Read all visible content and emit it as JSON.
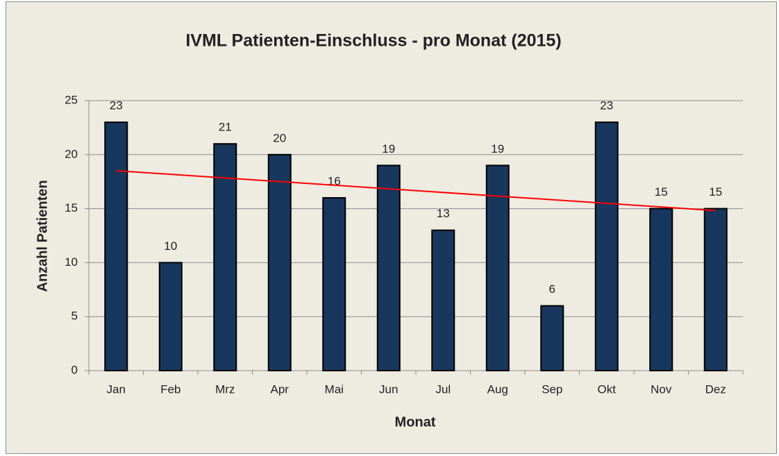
{
  "chart_data": {
    "type": "bar",
    "title": "IVML Patienten-Einschluss  - pro Monat (2015)",
    "x_label": "Monat",
    "y_label": "Anzahl Patienten",
    "categories": [
      "Jan",
      "Feb",
      "Mrz",
      "Apr",
      "Mai",
      "Jun",
      "Jul",
      "Aug",
      "Sep",
      "Okt",
      "Nov",
      "Dez"
    ],
    "values": [
      23,
      10,
      21,
      20,
      16,
      19,
      13,
      19,
      6,
      23,
      15,
      15
    ],
    "color": "#17375e",
    "ylim": [
      0,
      25
    ],
    "yticks": [
      0,
      5,
      10,
      15,
      20,
      25
    ],
    "grid": true,
    "trendline": {
      "type": "linear",
      "color": "#ff0000"
    }
  }
}
